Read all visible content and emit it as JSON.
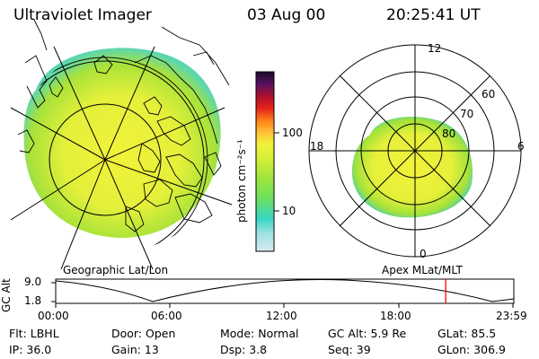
{
  "header": {
    "instrument": "Ultraviolet Imager",
    "date": "03 Aug 00",
    "time": "20:25:41 UT"
  },
  "colors": {
    "aurora_main": "#e7f23a",
    "aurora_edge": "#5cd6b0",
    "aurora_mid": "#b7e63a",
    "marker": "#ff0000"
  },
  "colorbar": {
    "label": "photon cm⁻²s⁻¹",
    "ticks": [
      "100",
      "10"
    ],
    "stops": [
      "#d8e9ee",
      "#9fe2e2",
      "#38d6c6",
      "#6fe05a",
      "#a4e63a",
      "#d8ee3a",
      "#f2f23a",
      "#ffc23a",
      "#ff8a1a",
      "#e2201a",
      "#b0102a",
      "#5a1060",
      "#1a0a2a"
    ]
  },
  "left_panel": {
    "label": "Geographic Lat/Lon"
  },
  "right_panel": {
    "label": "Apex MLat/MLT",
    "mlt_labels": [
      "12",
      "18",
      "6",
      "0"
    ],
    "mlat_labels": [
      "60",
      "70",
      "80"
    ]
  },
  "altitude_plot": {
    "ylabel": "GC Alt",
    "ytick_top": "9.0",
    "ytick_bottom": "1.8",
    "xticks": [
      "00:00",
      "06:00",
      "12:00",
      "18:00",
      "23:59"
    ],
    "current_time_hours": 20.43
  },
  "info": {
    "filter": "Flt: LBHL",
    "door": "Door: Open",
    "mode": "Mode: Normal",
    "gc_alt": "GC Alt: 5.9 Re",
    "glat": "GLat:  85.5",
    "ip": "IP: 36.0",
    "gain": "Gain: 13",
    "dsp": "Dsp:     3.8",
    "seq": "Seq: 39",
    "glon": "GLon: 306.9"
  }
}
